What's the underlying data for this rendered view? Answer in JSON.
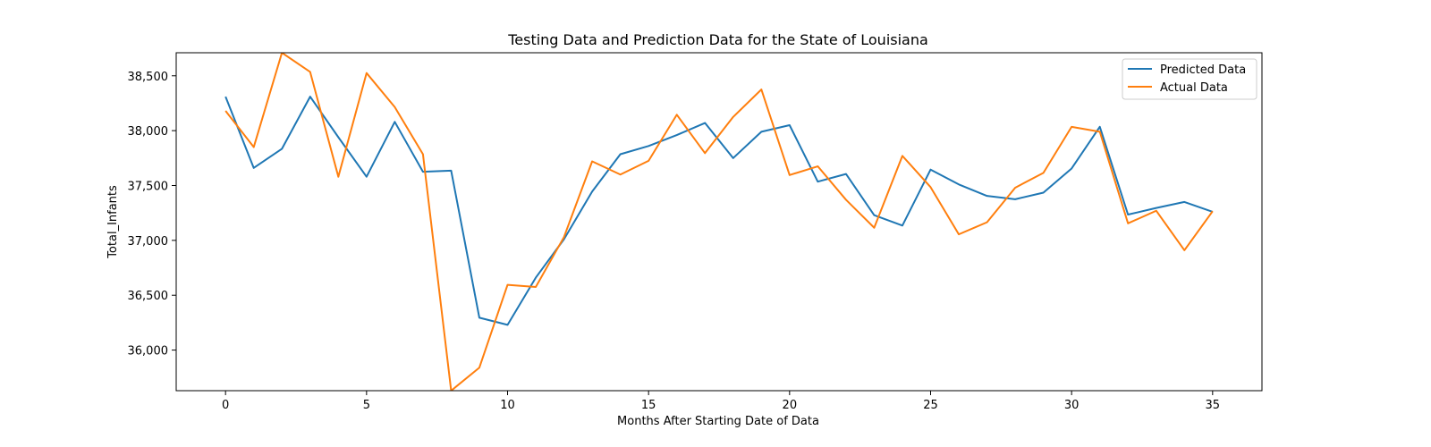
{
  "chart_data": {
    "type": "line",
    "title": "Testing Data and Prediction Data for the State of Louisiana",
    "xlabel": "Months After Starting Date of Data",
    "ylabel": "Total_Infants",
    "xlim": [
      -1.75,
      36.75
    ],
    "ylim": [
      35630,
      38710
    ],
    "xticks": [
      0,
      5,
      10,
      15,
      20,
      25,
      30,
      35
    ],
    "yticks": [
      36000,
      36500,
      37000,
      37500,
      38000,
      38500
    ],
    "ytick_labels": [
      "36,000",
      "36,500",
      "37,000",
      "37,500",
      "38,000",
      "38,500"
    ],
    "grid": false,
    "legend_position": "top-right",
    "x": [
      0,
      1,
      2,
      3,
      4,
      5,
      6,
      7,
      8,
      9,
      10,
      11,
      12,
      13,
      14,
      15,
      16,
      17,
      18,
      19,
      20,
      21,
      22,
      23,
      24,
      25,
      26,
      27,
      28,
      29,
      30,
      31,
      32,
      33,
      34,
      35
    ],
    "series": [
      {
        "name": "Predicted Data",
        "color": "#1f77b4",
        "values": [
          38310,
          37660,
          37835,
          38310,
          37940,
          37580,
          38080,
          37625,
          37635,
          36295,
          36230,
          36660,
          37010,
          37445,
          37785,
          37860,
          37960,
          38070,
          37750,
          37990,
          38050,
          37535,
          37605,
          37230,
          37135,
          37645,
          37510,
          37405,
          37375,
          37435,
          37655,
          38035,
          37235,
          37295,
          37350,
          37260
        ]
      },
      {
        "name": "Actual Data",
        "color": "#ff7f0e",
        "values": [
          38180,
          37850,
          38710,
          38535,
          37580,
          38525,
          38215,
          37785,
          35630,
          35840,
          36595,
          36575,
          37030,
          37720,
          37600,
          37725,
          38145,
          37795,
          38125,
          38375,
          37595,
          37675,
          37370,
          37115,
          37770,
          37485,
          37055,
          37165,
          37480,
          37615,
          38035,
          37990,
          37155,
          37270,
          36910,
          37265
        ]
      }
    ]
  }
}
